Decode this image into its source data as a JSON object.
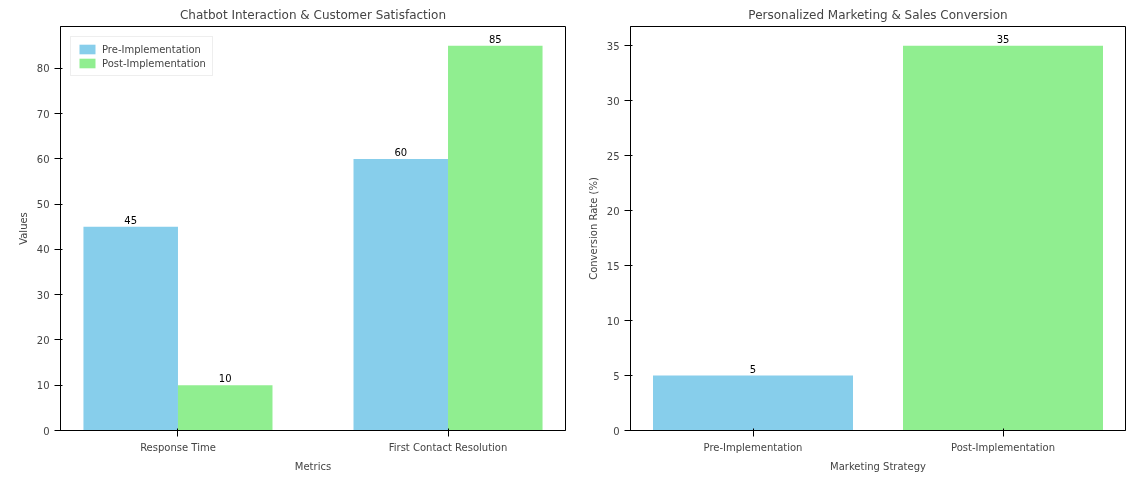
{
  "chart_data": [
    {
      "type": "bar",
      "title": "Chatbot Interaction & Customer Satisfaction",
      "xlabel": "Metrics",
      "ylabel": "Values",
      "categories": [
        "Response Time",
        "First Contact Resolution"
      ],
      "series": [
        {
          "name": "Pre-Implementation",
          "color": "#87ceeb",
          "values": [
            45,
            60
          ]
        },
        {
          "name": "Post-Implementation",
          "color": "#90ee90",
          "values": [
            10,
            85
          ]
        }
      ],
      "ylim": [
        0,
        89.25
      ],
      "yticks": [
        0,
        10,
        20,
        30,
        40,
        50,
        60,
        70,
        80
      ],
      "data_labels": true,
      "legend": "top left",
      "grid": false
    },
    {
      "type": "bar",
      "title": "Personalized Marketing & Sales Conversion",
      "xlabel": "Marketing Strategy",
      "ylabel": "Conversion Rate (%)",
      "categories": [
        "Pre-Implementation",
        "Post-Implementation"
      ],
      "values": [
        5,
        35
      ],
      "colors": [
        "#87ceeb",
        "#90ee90"
      ],
      "ylim": [
        0,
        36.75
      ],
      "yticks": [
        0,
        5,
        10,
        15,
        20,
        25,
        30,
        35
      ],
      "data_labels": true,
      "grid": false
    }
  ]
}
